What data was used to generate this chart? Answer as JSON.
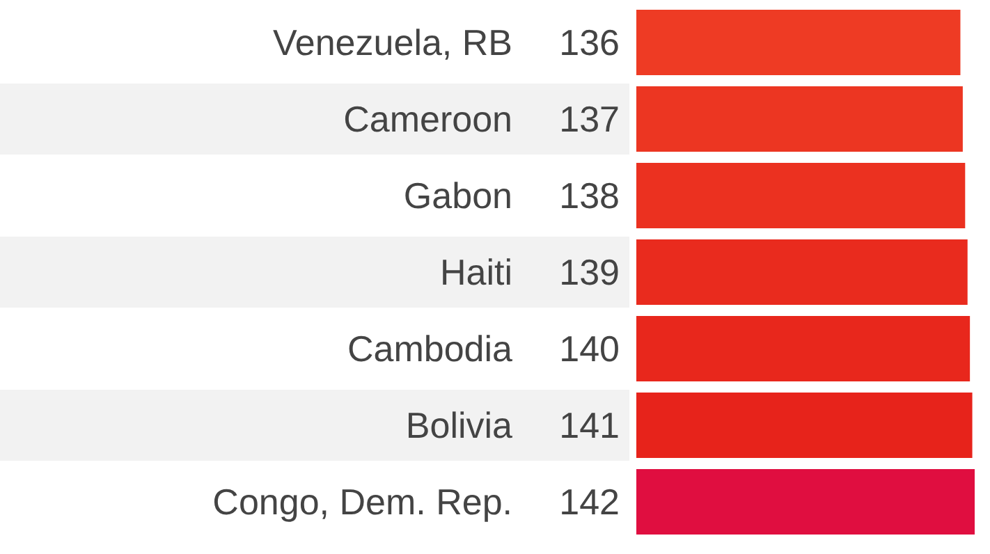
{
  "chart_data": {
    "type": "bar",
    "orientation": "horizontal",
    "categories": [
      "Venezuela, RB",
      "Cameroon",
      "Gabon",
      "Haiti",
      "Cambodia",
      "Bolivia",
      "Congo, Dem. Rep."
    ],
    "values": [
      136,
      137,
      138,
      139,
      140,
      141,
      142
    ],
    "data_labels": true,
    "xlim": [
      0,
      142
    ],
    "tick_labels": "y",
    "colors": [
      "#ee3b24",
      "#ec3622",
      "#eb3120",
      "#e92b1e",
      "#e8271c",
      "#e7231b",
      "#e00e40"
    ],
    "grid": false
  }
}
